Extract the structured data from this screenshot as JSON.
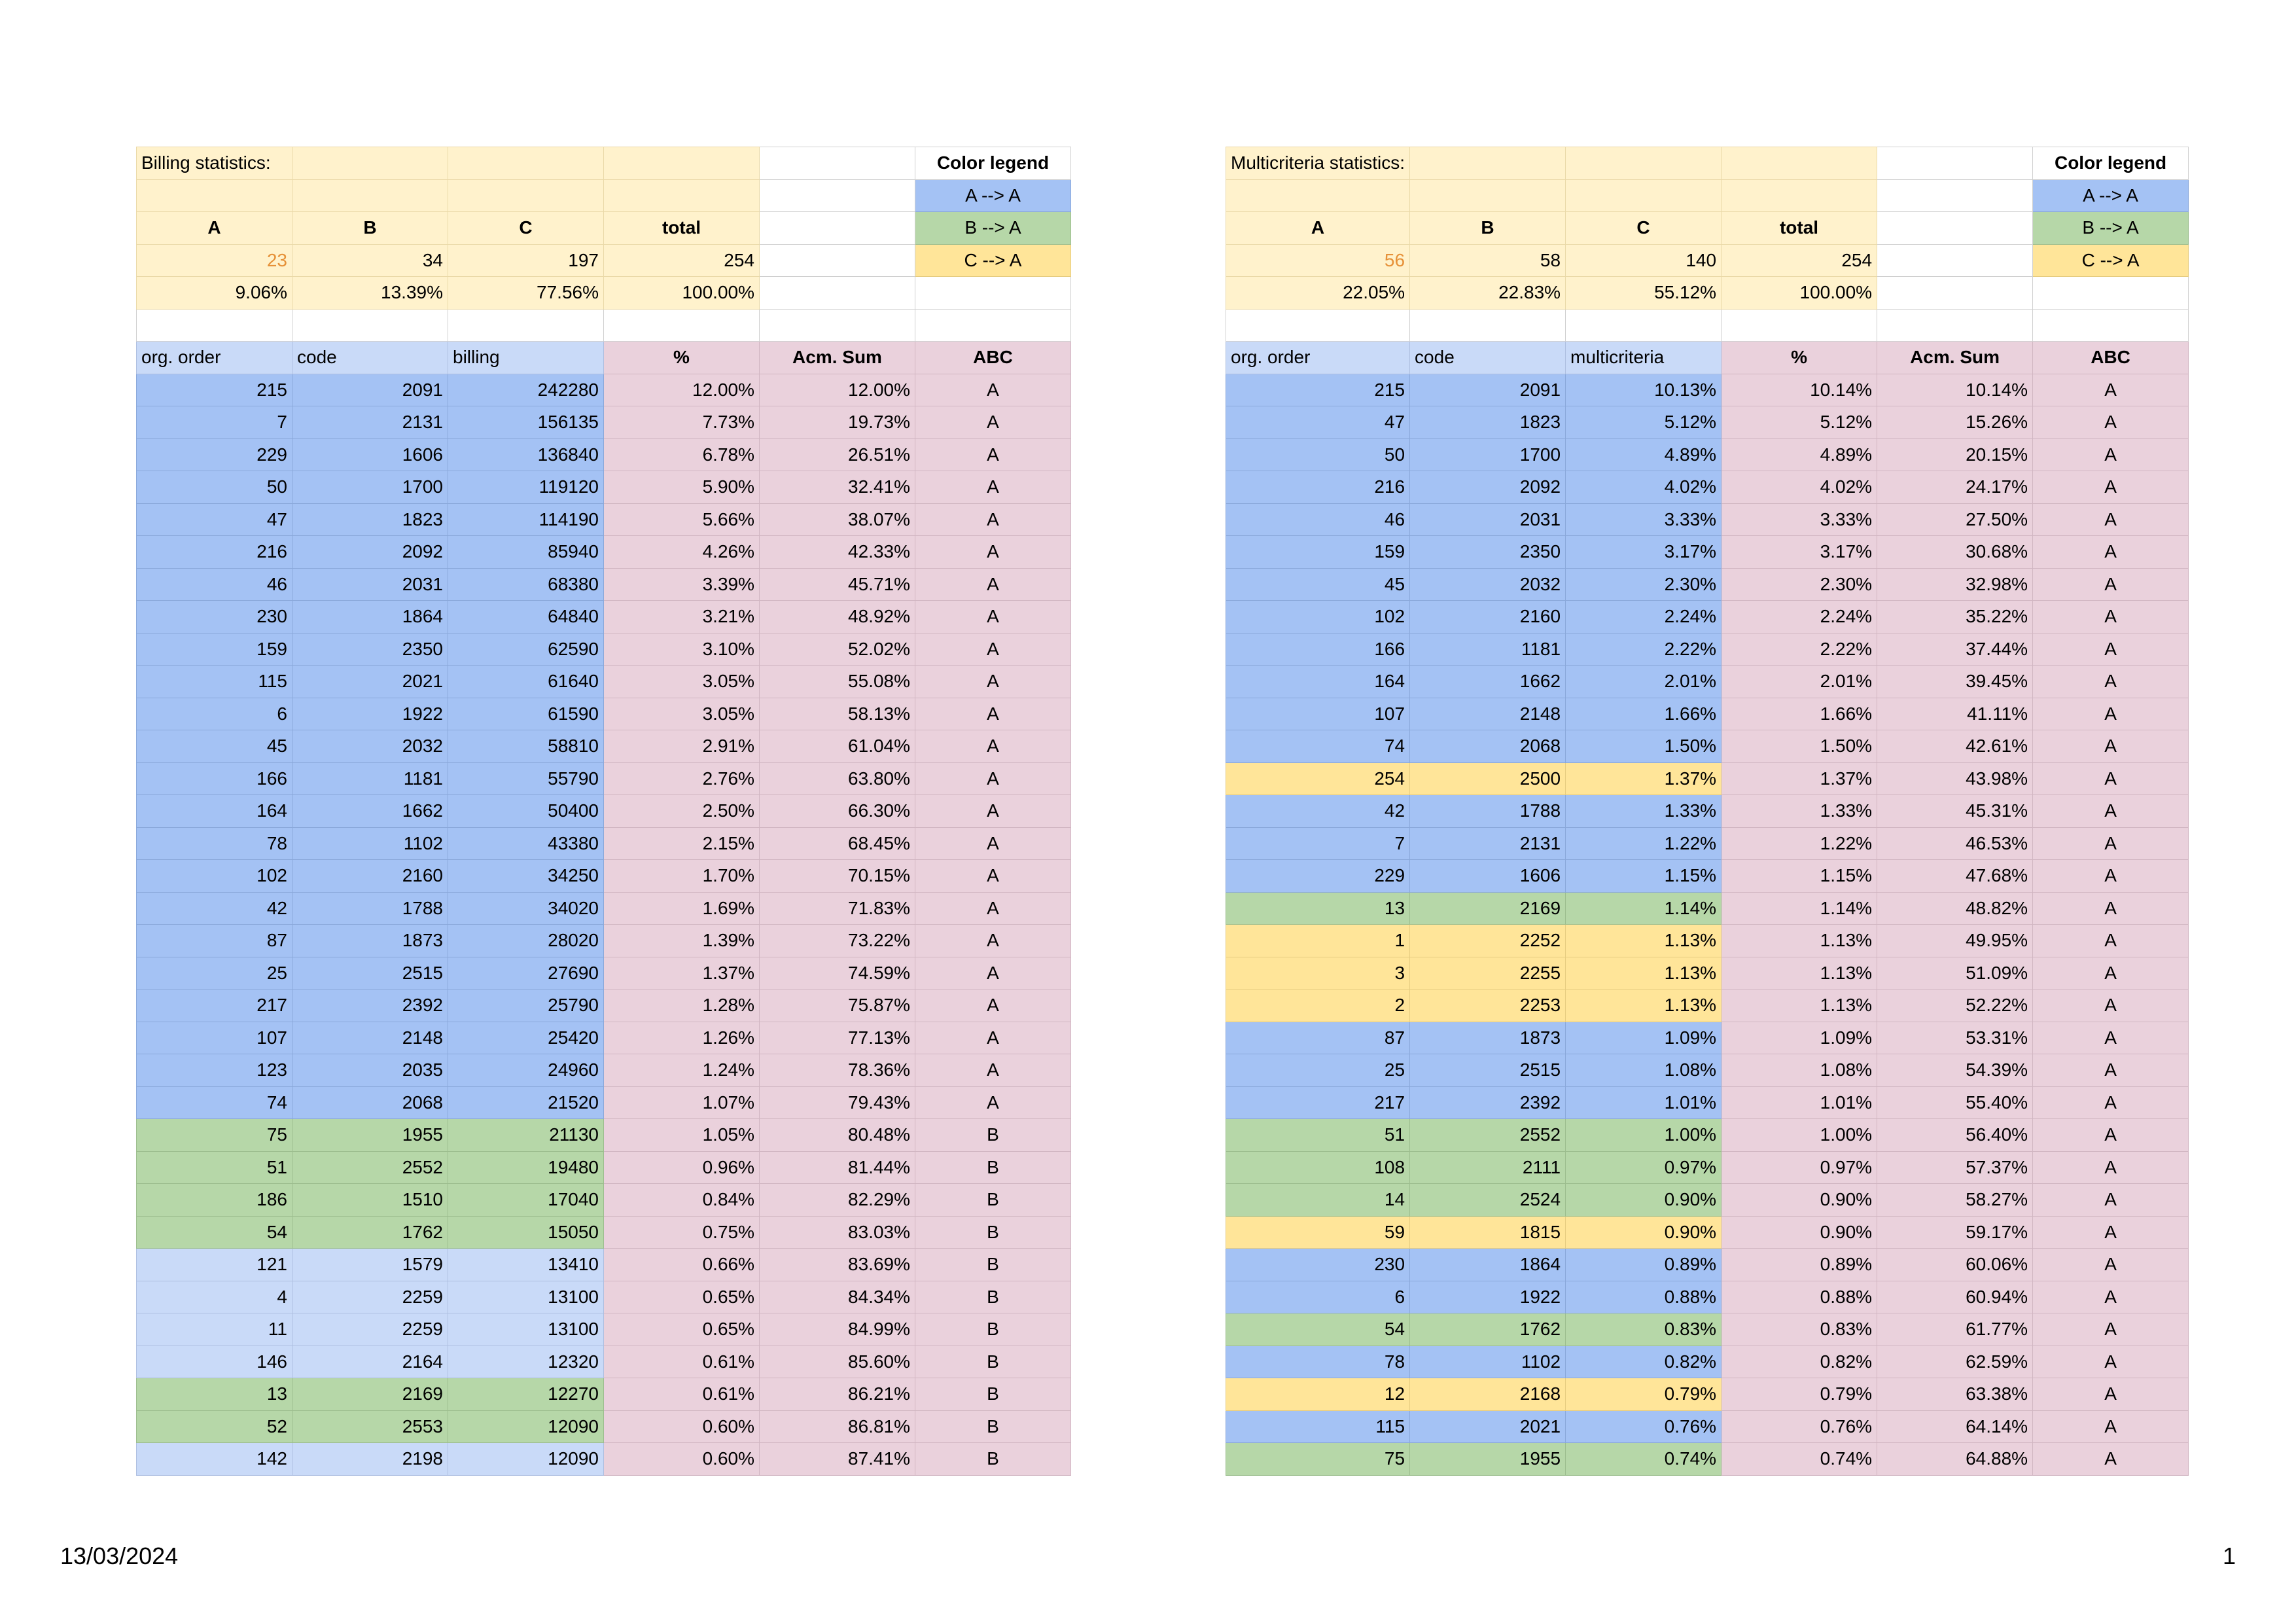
{
  "footer": {
    "date": "13/03/2024",
    "page": "1"
  },
  "colors": {
    "a_to_a": "#a4c2f4",
    "b_to_a": "#b6d7a8",
    "c_to_a": "#ffe599",
    "stats_bg": "#fff2cc",
    "header_bg": "#c9daf8",
    "pink_bg": "#ead1dc",
    "light_blue": "#c9daf8",
    "orange_text": "#e69138"
  },
  "legend": {
    "title": "Color legend",
    "items": [
      "A --> A",
      "B --> A",
      "C --> A"
    ]
  },
  "billing": {
    "title": "Billing statistics:",
    "class_labels": [
      "A",
      "B",
      "C",
      "total"
    ],
    "counts": [
      "23",
      "34",
      "197",
      "254"
    ],
    "percents": [
      "9.06%",
      "13.39%",
      "77.56%",
      "100.00%"
    ],
    "headers": [
      "org. order",
      "code",
      "billing",
      "%",
      "Acm. Sum",
      "ABC"
    ],
    "rows": [
      {
        "c": "a",
        "v": [
          "215",
          "2091",
          "242280",
          "12.00%",
          "12.00%",
          "A"
        ]
      },
      {
        "c": "a",
        "v": [
          "7",
          "2131",
          "156135",
          "7.73%",
          "19.73%",
          "A"
        ]
      },
      {
        "c": "a",
        "v": [
          "229",
          "1606",
          "136840",
          "6.78%",
          "26.51%",
          "A"
        ]
      },
      {
        "c": "a",
        "v": [
          "50",
          "1700",
          "119120",
          "5.90%",
          "32.41%",
          "A"
        ]
      },
      {
        "c": "a",
        "v": [
          "47",
          "1823",
          "114190",
          "5.66%",
          "38.07%",
          "A"
        ]
      },
      {
        "c": "a",
        "v": [
          "216",
          "2092",
          "85940",
          "4.26%",
          "42.33%",
          "A"
        ]
      },
      {
        "c": "a",
        "v": [
          "46",
          "2031",
          "68380",
          "3.39%",
          "45.71%",
          "A"
        ]
      },
      {
        "c": "a",
        "v": [
          "230",
          "1864",
          "64840",
          "3.21%",
          "48.92%",
          "A"
        ]
      },
      {
        "c": "a",
        "v": [
          "159",
          "2350",
          "62590",
          "3.10%",
          "52.02%",
          "A"
        ]
      },
      {
        "c": "a",
        "v": [
          "115",
          "2021",
          "61640",
          "3.05%",
          "55.08%",
          "A"
        ]
      },
      {
        "c": "a",
        "v": [
          "6",
          "1922",
          "61590",
          "3.05%",
          "58.13%",
          "A"
        ]
      },
      {
        "c": "a",
        "v": [
          "45",
          "2032",
          "58810",
          "2.91%",
          "61.04%",
          "A"
        ]
      },
      {
        "c": "a",
        "v": [
          "166",
          "1181",
          "55790",
          "2.76%",
          "63.80%",
          "A"
        ]
      },
      {
        "c": "a",
        "v": [
          "164",
          "1662",
          "50400",
          "2.50%",
          "66.30%",
          "A"
        ]
      },
      {
        "c": "a",
        "v": [
          "78",
          "1102",
          "43380",
          "2.15%",
          "68.45%",
          "A"
        ]
      },
      {
        "c": "a",
        "v": [
          "102",
          "2160",
          "34250",
          "1.70%",
          "70.15%",
          "A"
        ]
      },
      {
        "c": "a",
        "v": [
          "42",
          "1788",
          "34020",
          "1.69%",
          "71.83%",
          "A"
        ]
      },
      {
        "c": "a",
        "v": [
          "87",
          "1873",
          "28020",
          "1.39%",
          "73.22%",
          "A"
        ]
      },
      {
        "c": "a",
        "v": [
          "25",
          "2515",
          "27690",
          "1.37%",
          "74.59%",
          "A"
        ]
      },
      {
        "c": "a",
        "v": [
          "217",
          "2392",
          "25790",
          "1.28%",
          "75.87%",
          "A"
        ]
      },
      {
        "c": "a",
        "v": [
          "107",
          "2148",
          "25420",
          "1.26%",
          "77.13%",
          "A"
        ]
      },
      {
        "c": "a",
        "v": [
          "123",
          "2035",
          "24960",
          "1.24%",
          "78.36%",
          "A"
        ]
      },
      {
        "c": "a",
        "v": [
          "74",
          "2068",
          "21520",
          "1.07%",
          "79.43%",
          "A"
        ]
      },
      {
        "c": "b",
        "v": [
          "75",
          "1955",
          "21130",
          "1.05%",
          "80.48%",
          "B"
        ]
      },
      {
        "c": "b",
        "v": [
          "51",
          "2552",
          "19480",
          "0.96%",
          "81.44%",
          "B"
        ]
      },
      {
        "c": "b",
        "v": [
          "186",
          "1510",
          "17040",
          "0.84%",
          "82.29%",
          "B"
        ]
      },
      {
        "c": "b",
        "v": [
          "54",
          "1762",
          "15050",
          "0.75%",
          "83.03%",
          "B"
        ]
      },
      {
        "c": "lt",
        "v": [
          "121",
          "1579",
          "13410",
          "0.66%",
          "83.69%",
          "B"
        ]
      },
      {
        "c": "lt",
        "v": [
          "4",
          "2259",
          "13100",
          "0.65%",
          "84.34%",
          "B"
        ]
      },
      {
        "c": "lt",
        "v": [
          "11",
          "2259",
          "13100",
          "0.65%",
          "84.99%",
          "B"
        ]
      },
      {
        "c": "lt",
        "v": [
          "146",
          "2164",
          "12320",
          "0.61%",
          "85.60%",
          "B"
        ]
      },
      {
        "c": "b",
        "v": [
          "13",
          "2169",
          "12270",
          "0.61%",
          "86.21%",
          "B"
        ]
      },
      {
        "c": "b",
        "v": [
          "52",
          "2553",
          "12090",
          "0.60%",
          "86.81%",
          "B"
        ]
      },
      {
        "c": "lt",
        "v": [
          "142",
          "2198",
          "12090",
          "0.60%",
          "87.41%",
          "B"
        ]
      }
    ]
  },
  "multicriteria": {
    "title": "Multicriteria statistics:",
    "class_labels": [
      "A",
      "B",
      "C",
      "total"
    ],
    "counts": [
      "56",
      "58",
      "140",
      "254"
    ],
    "percents": [
      "22.05%",
      "22.83%",
      "55.12%",
      "100.00%"
    ],
    "headers": [
      "org. order",
      "code",
      "multicriteria",
      "%",
      "Acm. Sum",
      "ABC"
    ],
    "rows": [
      {
        "c": "a",
        "v": [
          "215",
          "2091",
          "10.13%",
          "10.14%",
          "10.14%",
          "A"
        ]
      },
      {
        "c": "a",
        "v": [
          "47",
          "1823",
          "5.12%",
          "5.12%",
          "15.26%",
          "A"
        ]
      },
      {
        "c": "a",
        "v": [
          "50",
          "1700",
          "4.89%",
          "4.89%",
          "20.15%",
          "A"
        ]
      },
      {
        "c": "a",
        "v": [
          "216",
          "2092",
          "4.02%",
          "4.02%",
          "24.17%",
          "A"
        ]
      },
      {
        "c": "a",
        "v": [
          "46",
          "2031",
          "3.33%",
          "3.33%",
          "27.50%",
          "A"
        ]
      },
      {
        "c": "a",
        "v": [
          "159",
          "2350",
          "3.17%",
          "3.17%",
          "30.68%",
          "A"
        ]
      },
      {
        "c": "a",
        "v": [
          "45",
          "2032",
          "2.30%",
          "2.30%",
          "32.98%",
          "A"
        ]
      },
      {
        "c": "a",
        "v": [
          "102",
          "2160",
          "2.24%",
          "2.24%",
          "35.22%",
          "A"
        ]
      },
      {
        "c": "a",
        "v": [
          "166",
          "1181",
          "2.22%",
          "2.22%",
          "37.44%",
          "A"
        ]
      },
      {
        "c": "a",
        "v": [
          "164",
          "1662",
          "2.01%",
          "2.01%",
          "39.45%",
          "A"
        ]
      },
      {
        "c": "a",
        "v": [
          "107",
          "2148",
          "1.66%",
          "1.66%",
          "41.11%",
          "A"
        ]
      },
      {
        "c": "a",
        "v": [
          "74",
          "2068",
          "1.50%",
          "1.50%",
          "42.61%",
          "A"
        ]
      },
      {
        "c": "c",
        "v": [
          "254",
          "2500",
          "1.37%",
          "1.37%",
          "43.98%",
          "A"
        ]
      },
      {
        "c": "a",
        "v": [
          "42",
          "1788",
          "1.33%",
          "1.33%",
          "45.31%",
          "A"
        ]
      },
      {
        "c": "a",
        "v": [
          "7",
          "2131",
          "1.22%",
          "1.22%",
          "46.53%",
          "A"
        ]
      },
      {
        "c": "a",
        "v": [
          "229",
          "1606",
          "1.15%",
          "1.15%",
          "47.68%",
          "A"
        ]
      },
      {
        "c": "b",
        "v": [
          "13",
          "2169",
          "1.14%",
          "1.14%",
          "48.82%",
          "A"
        ]
      },
      {
        "c": "c",
        "v": [
          "1",
          "2252",
          "1.13%",
          "1.13%",
          "49.95%",
          "A"
        ]
      },
      {
        "c": "c",
        "v": [
          "3",
          "2255",
          "1.13%",
          "1.13%",
          "51.09%",
          "A"
        ]
      },
      {
        "c": "c",
        "v": [
          "2",
          "2253",
          "1.13%",
          "1.13%",
          "52.22%",
          "A"
        ]
      },
      {
        "c": "a",
        "v": [
          "87",
          "1873",
          "1.09%",
          "1.09%",
          "53.31%",
          "A"
        ]
      },
      {
        "c": "a",
        "v": [
          "25",
          "2515",
          "1.08%",
          "1.08%",
          "54.39%",
          "A"
        ]
      },
      {
        "c": "a",
        "v": [
          "217",
          "2392",
          "1.01%",
          "1.01%",
          "55.40%",
          "A"
        ]
      },
      {
        "c": "b",
        "v": [
          "51",
          "2552",
          "1.00%",
          "1.00%",
          "56.40%",
          "A"
        ]
      },
      {
        "c": "b",
        "v": [
          "108",
          "2111",
          "0.97%",
          "0.97%",
          "57.37%",
          "A"
        ]
      },
      {
        "c": "b",
        "v": [
          "14",
          "2524",
          "0.90%",
          "0.90%",
          "58.27%",
          "A"
        ]
      },
      {
        "c": "c",
        "v": [
          "59",
          "1815",
          "0.90%",
          "0.90%",
          "59.17%",
          "A"
        ]
      },
      {
        "c": "a",
        "v": [
          "230",
          "1864",
          "0.89%",
          "0.89%",
          "60.06%",
          "A"
        ]
      },
      {
        "c": "a",
        "v": [
          "6",
          "1922",
          "0.88%",
          "0.88%",
          "60.94%",
          "A"
        ]
      },
      {
        "c": "b",
        "v": [
          "54",
          "1762",
          "0.83%",
          "0.83%",
          "61.77%",
          "A"
        ]
      },
      {
        "c": "a",
        "v": [
          "78",
          "1102",
          "0.82%",
          "0.82%",
          "62.59%",
          "A"
        ]
      },
      {
        "c": "c",
        "v": [
          "12",
          "2168",
          "0.79%",
          "0.79%",
          "63.38%",
          "A"
        ]
      },
      {
        "c": "a",
        "v": [
          "115",
          "2021",
          "0.76%",
          "0.76%",
          "64.14%",
          "A"
        ]
      },
      {
        "c": "b",
        "v": [
          "75",
          "1955",
          "0.74%",
          "0.74%",
          "64.88%",
          "A"
        ]
      }
    ]
  }
}
